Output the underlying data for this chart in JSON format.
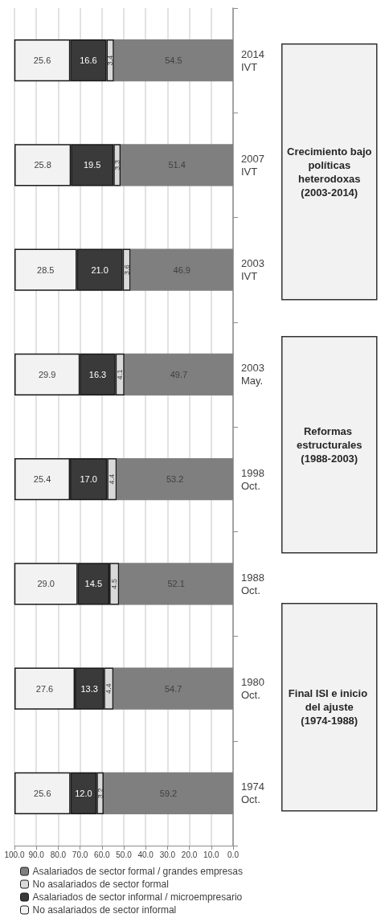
{
  "chart_data": {
    "type": "bar",
    "stacked": true,
    "orientation": "horizontal",
    "categories": [
      "2014\nIVT",
      "2007\nIVT",
      "2003\nIVT",
      "2003\nMay.",
      "1998\nOct.",
      "1988\nOct.",
      "1980\nOct.",
      "1974\nOct."
    ],
    "series": [
      {
        "name": "Asalariados de sector formal / grandes empresas",
        "color": "#7f7f7f",
        "values": [
          54.5,
          51.4,
          46.9,
          49.7,
          53.2,
          52.1,
          54.7,
          59.2
        ],
        "value_labels": [
          "54.5",
          "51.4",
          "46.9",
          "49.7",
          "53.2",
          "52.1",
          "54.7",
          "59.2"
        ]
      },
      {
        "name": "No asalariados de sector formal",
        "color": "#d9d9d9",
        "values": [
          3.4,
          3.3,
          3.6,
          4.1,
          4.4,
          4.5,
          4.4,
          3.2
        ],
        "value_labels": [
          "3.4",
          "3.3",
          "3.6",
          "4.1",
          "4.4",
          "4.5",
          "4.4",
          "3.2"
        ]
      },
      {
        "name": "Asalariados de sector informal / microempresario",
        "color": "#3a3a3a",
        "values": [
          16.6,
          19.5,
          21.0,
          16.3,
          17.0,
          14.5,
          13.3,
          12.0
        ],
        "value_labels": [
          "16.6",
          "19.5",
          "21.0",
          "16.3",
          "17.0",
          "14.5",
          "13.3",
          "12.0"
        ]
      },
      {
        "name": "No asalariados de sector informal",
        "color": "#f2f2f2",
        "values": [
          25.6,
          25.8,
          28.5,
          29.9,
          25.4,
          29.0,
          27.6,
          25.6
        ],
        "value_labels": [
          "25.6",
          "25.8",
          "28.5",
          "29.9",
          "25.4",
          "29.0",
          "27.6",
          "25.6"
        ]
      }
    ],
    "xlim": [
      100,
      0
    ],
    "xticks": [
      {
        "value": 100,
        "label": "100.0"
      },
      {
        "value": 90,
        "label": "90.0"
      },
      {
        "value": 80,
        "label": "80.0"
      },
      {
        "value": 70,
        "label": "70.0"
      },
      {
        "value": 60,
        "label": "60.0"
      },
      {
        "value": 50,
        "label": "50.0"
      },
      {
        "value": 40,
        "label": "40.0"
      },
      {
        "value": 30,
        "label": "30.0"
      },
      {
        "value": 20,
        "label": "20.0"
      },
      {
        "value": 10,
        "label": "10.0"
      },
      {
        "value": 0,
        "label": "0.0"
      }
    ],
    "grid": "x",
    "legend": "bottom",
    "annotations": [
      "Final ISI e inicio del ajuste\n(1974-1988)",
      "Reformas estructurales\n(1988-2003)",
      "Crecimiento bajo políticas heterodoxas\n(2003-2014)"
    ]
  }
}
